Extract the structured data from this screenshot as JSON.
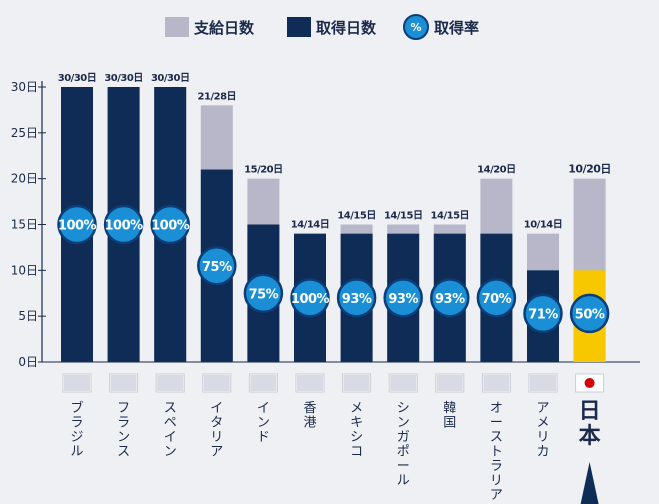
{
  "legend": {
    "supply_label": "支給日数",
    "taken_label": "取得日数",
    "rate_symbol": "%",
    "rate_label": "取得率"
  },
  "colors": {
    "background": "#eef0f3",
    "supply": "#b7b7c9",
    "taken": "#0e2c55",
    "taken_highlight": "#f7c800",
    "rate_circle": "#1a8fd6",
    "rate_ring": "#0b3d78",
    "axis": "#1b2a4a"
  },
  "chart_data": {
    "type": "bar",
    "title": "",
    "xlabel": "",
    "ylabel": "",
    "ylim": [
      0,
      30
    ],
    "yticks": [
      0,
      5,
      10,
      15,
      20,
      25,
      30
    ],
    "ytick_labels": [
      "0日",
      "5日",
      "10日",
      "15日",
      "20日",
      "25日",
      "30日"
    ],
    "categories": [
      "ブラジル",
      "フランス",
      "スペイン",
      "イタリア",
      "インド",
      "香港",
      "メキシコ",
      "シンガポール",
      "韓国",
      "オーストラリア",
      "アメリカ",
      "日本"
    ],
    "series": [
      {
        "name": "支給日数",
        "values": [
          30,
          30,
          30,
          28,
          20,
          14,
          15,
          15,
          15,
          20,
          14,
          20
        ]
      },
      {
        "name": "取得日数",
        "values": [
          30,
          30,
          30,
          21,
          15,
          14,
          14,
          14,
          14,
          14,
          10,
          10
        ]
      },
      {
        "name": "取得率",
        "values": [
          100,
          100,
          100,
          75,
          75,
          100,
          93,
          93,
          93,
          70,
          71,
          50
        ]
      }
    ],
    "bar_labels": [
      "30/30日",
      "30/30日",
      "30/30日",
      "21/28日",
      "15/20日",
      "14/14日",
      "14/15日",
      "14/15日",
      "14/15日",
      "14/20日",
      "10/14日",
      "10/20日"
    ],
    "rate_labels": [
      "100%",
      "100%",
      "100%",
      "75%",
      "75%",
      "100%",
      "93%",
      "93%",
      "93%",
      "70%",
      "71%",
      "50%"
    ],
    "highlight_category": "日本",
    "legend_position": "top"
  }
}
